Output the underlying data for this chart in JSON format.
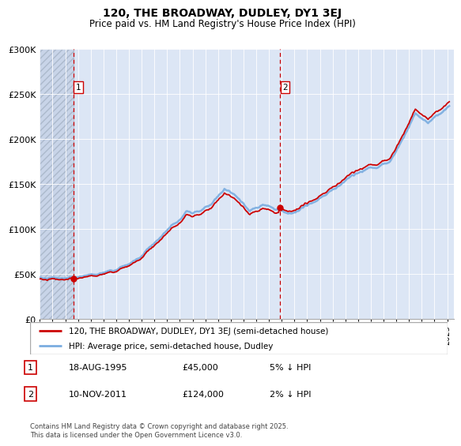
{
  "title": "120, THE BROADWAY, DUDLEY, DY1 3EJ",
  "subtitle": "Price paid vs. HM Land Registry's House Price Index (HPI)",
  "legend_label_red": "120, THE BROADWAY, DUDLEY, DY1 3EJ (semi-detached house)",
  "legend_label_blue": "HPI: Average price, semi-detached house, Dudley",
  "marker1_date": "18-AUG-1995",
  "marker1_price": 45000,
  "marker1_note": "5% ↓ HPI",
  "marker2_date": "10-NOV-2011",
  "marker2_price": 124000,
  "marker2_note": "2% ↓ HPI",
  "marker1_x": 1995.63,
  "marker2_x": 2011.86,
  "ylim_min": 0,
  "ylim_max": 300000,
  "plot_bg_color": "#dce6f5",
  "red_line_color": "#cc0000",
  "blue_line_color": "#7aade0",
  "footer_text": "Contains HM Land Registry data © Crown copyright and database right 2025.\nThis data is licensed under the Open Government Licence v3.0.",
  "hpi_anchor_years": [
    1993.0,
    1995.0,
    1996.0,
    1997.5,
    1999.0,
    2000.5,
    2002.0,
    2003.5,
    2004.5,
    2005.5,
    2006.5,
    2007.5,
    2008.5,
    2009.5,
    2010.5,
    2011.5,
    2012.5,
    2013.5,
    2014.5,
    2015.5,
    2016.5,
    2017.5,
    2018.5,
    2019.5,
    2020.5,
    2021.5,
    2022.5,
    2023.5,
    2024.5,
    2025.1
  ],
  "hpi_anchor_vals": [
    46000,
    45000,
    46500,
    50000,
    55000,
    65000,
    85000,
    105000,
    118000,
    120000,
    128000,
    145000,
    135000,
    120000,
    128000,
    122000,
    118000,
    122000,
    130000,
    138000,
    148000,
    160000,
    165000,
    168000,
    175000,
    200000,
    228000,
    218000,
    228000,
    238000
  ]
}
